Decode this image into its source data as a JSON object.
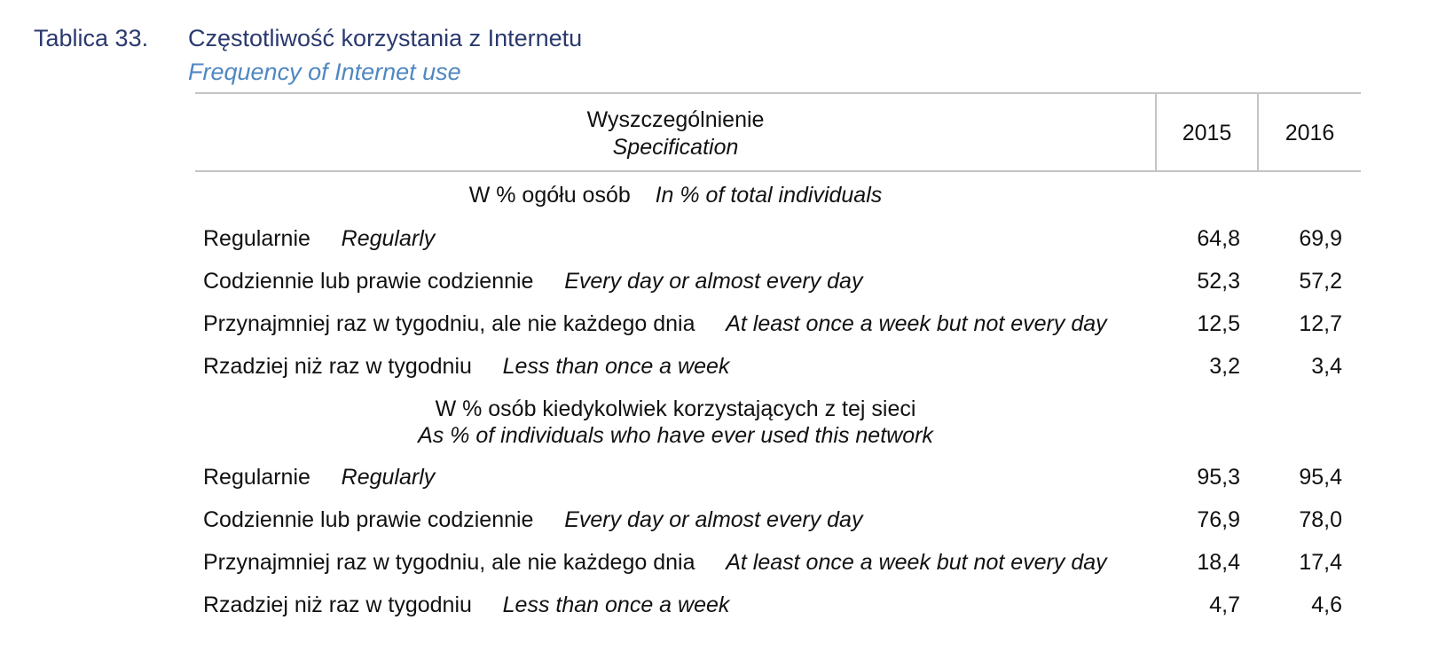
{
  "caption": {
    "label": "Tablica 33.",
    "title": "Częstotliwość korzystania z Internetu",
    "subtitle": "Frequency of Internet use"
  },
  "header": {
    "spec_pl": "Wyszczególnienie",
    "spec_en": "Specification",
    "years": [
      "2015",
      "2016"
    ]
  },
  "sections": [
    {
      "title_pl": "W % ogółu osób",
      "title_en": "In % of total individuals",
      "rows": [
        {
          "label_pl": "Regularnie",
          "label_en": "Regularly",
          "values": [
            "64,8",
            "69,9"
          ]
        },
        {
          "label_pl": "Codziennie lub prawie codziennie",
          "label_en": "Every day or almost every day",
          "values": [
            "52,3",
            "57,2"
          ]
        },
        {
          "label_pl": "Przynajmniej raz w tygodniu, ale nie każdego dnia",
          "label_en": "At least once a week but not every day",
          "values": [
            "12,5",
            "12,7"
          ]
        },
        {
          "label_pl": "Rzadziej niż raz w tygodniu",
          "label_en": "Less than once a week",
          "values": [
            "3,2",
            "3,4"
          ]
        }
      ]
    },
    {
      "title_pl": "W % osób kiedykolwiek korzystających z tej sieci",
      "title_en": "As % of individuals who have ever used this network",
      "rows": [
        {
          "label_pl": "Regularnie",
          "label_en": "Regularly",
          "values": [
            "95,3",
            "95,4"
          ]
        },
        {
          "label_pl": "Codziennie lub prawie codziennie",
          "label_en": "Every day or almost every day",
          "values": [
            "76,9",
            "78,0"
          ]
        },
        {
          "label_pl": "Przynajmniej raz w tygodniu, ale nie każdego dnia",
          "label_en": "At least once a week but not every day",
          "values": [
            "18,4",
            "17,4"
          ]
        },
        {
          "label_pl": "Rzadziej niż raz w tygodniu",
          "label_en": "Less than once a week",
          "values": [
            "4,7",
            "4,6"
          ]
        }
      ]
    }
  ]
}
